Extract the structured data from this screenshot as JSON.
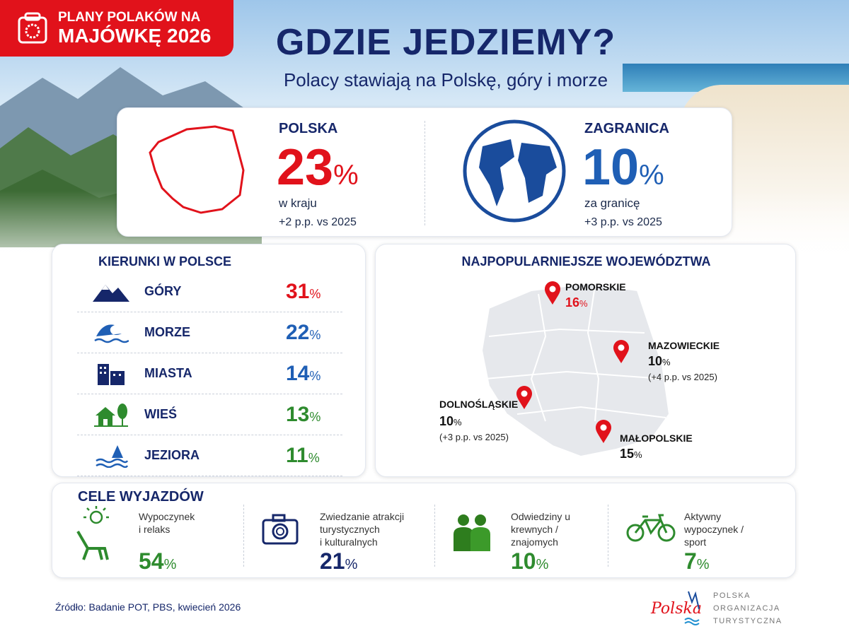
{
  "badge": {
    "line1": "PLANY POLAKÓW NA",
    "line2": "MAJÓWKĘ 2026",
    "icon": "calendar-icon"
  },
  "header": {
    "title": "GDZIE JEDZIEMY?",
    "subtitle": "Polacy stawiają na Polskę, góry i morze"
  },
  "summary": {
    "poland": {
      "label": "POLSKA",
      "value": "23",
      "unit": "%",
      "desc": "w kraju",
      "change": "+2 p.p. vs 2025",
      "color": "#e1121b",
      "icon": "poland-outline-icon"
    },
    "abroad": {
      "label": "ZAGRANICA",
      "value": "10",
      "unit": "%",
      "desc": "za granicę",
      "change": "+3 p.p. vs 2025",
      "color": "#1f5fb5",
      "icon": "globe-icon"
    }
  },
  "directions": {
    "title": "KIERUNKI W POLSCE",
    "items": [
      {
        "name": "GÓRY",
        "value": "31",
        "unit": "%",
        "color": "#e1121b",
        "icon": "mountains-icon"
      },
      {
        "name": "MORZE",
        "value": "22",
        "unit": "%",
        "color": "#1f5fb5",
        "icon": "wave-icon"
      },
      {
        "name": "MIASTA",
        "value": "14",
        "unit": "%",
        "color": "#1f5fb5",
        "icon": "city-icon"
      },
      {
        "name": "WIEŚ",
        "value": "13",
        "unit": "%",
        "color": "#2e8b2e",
        "icon": "house-tree-icon"
      },
      {
        "name": "JEZIORA",
        "value": "11",
        "unit": "%",
        "color": "#2e8b2e",
        "icon": "lake-icon"
      }
    ]
  },
  "regions": {
    "title": "NAJPOPULARNIEJSZE WOJEWÓDZTWA",
    "items": [
      {
        "name": "POMORSKIE",
        "value": "16",
        "unit": "%",
        "note": "",
        "color": "#e1121b"
      },
      {
        "name": "MAZOWIECKIE",
        "value": "10",
        "unit": "%",
        "note": "(+4 p.p. vs 2025)",
        "color": "#111"
      },
      {
        "name": "DOLNOŚLĄSKIE",
        "value": "10",
        "unit": "%",
        "note": "(+3 p.p. vs 2025)",
        "color": "#111"
      },
      {
        "name": "MAŁOPOLSKIE",
        "value": "15",
        "unit": "%",
        "note": "",
        "color": "#111"
      }
    ]
  },
  "goals": {
    "title": "CELE WYJAZDÓW",
    "items": [
      {
        "lines": [
          "Wypoczynek",
          "i relaks"
        ],
        "value": "54",
        "unit": "%",
        "color": "#2e8b2e",
        "icon": "sun-deckchair-icon"
      },
      {
        "lines": [
          "Zwiedzanie atrakcji",
          "turystycznych",
          "i kulturalnych"
        ],
        "value": "21",
        "unit": "%",
        "color": "#16276a",
        "icon": "camera-icon"
      },
      {
        "lines": [
          "Odwiedziny u",
          "krewnych /",
          "znajomych"
        ],
        "value": "10",
        "unit": "%",
        "color": "#2e8b2e",
        "icon": "people-icon"
      },
      {
        "lines": [
          "Aktywny",
          "wypoczynek /",
          "sport"
        ],
        "value": "7",
        "unit": "%",
        "color": "#2e8b2e",
        "icon": "bicycle-icon"
      }
    ]
  },
  "footer": {
    "source": "Źródło: Badanie POT, PBS, kwiecień 2026",
    "org": [
      "POLSKA",
      "ORGANIZACJA",
      "TURYSTYCZNA"
    ],
    "logo_text": "Polska"
  }
}
